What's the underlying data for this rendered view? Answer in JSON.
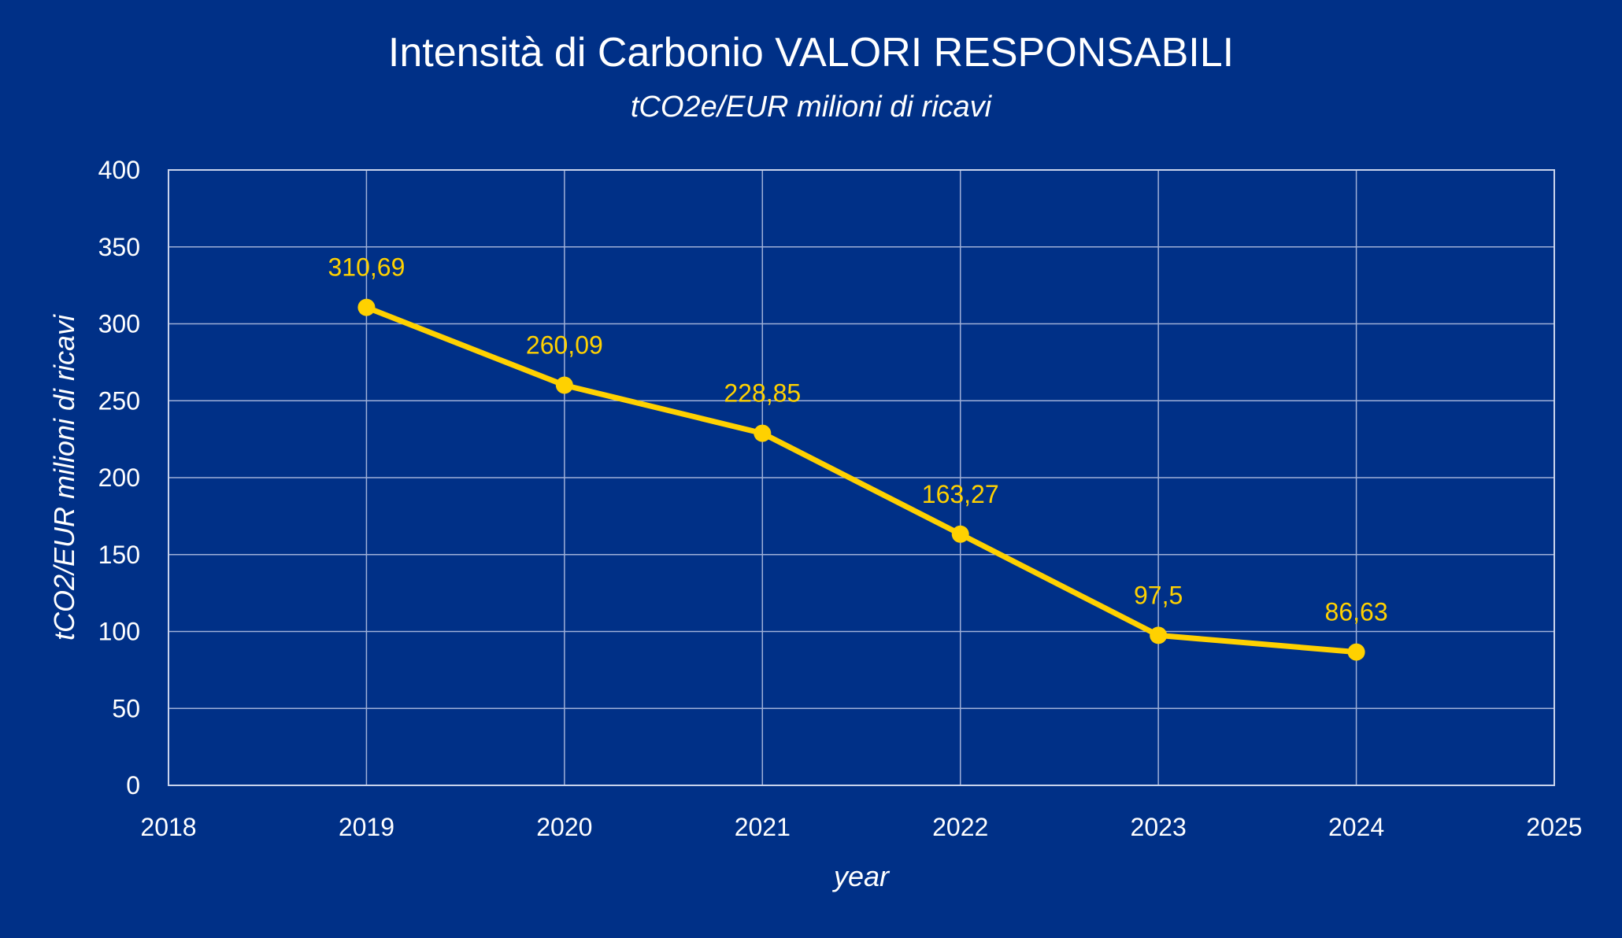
{
  "colors": {
    "background": "#003087",
    "line": "#FFD100",
    "text": "#ffffff",
    "grid": "#9fb0d8"
  },
  "chart_data": {
    "type": "scatter",
    "title": "Intensità di Carbonio VALORI RESPONSABILI",
    "subtitle": "tCO2e/EUR milioni di ricavi",
    "xlabel": "year",
    "ylabel": "tCO2/EUR milioni di ricavi",
    "xlim": [
      2018,
      2025
    ],
    "ylim": [
      0,
      400
    ],
    "x_ticks": [
      2018,
      2019,
      2020,
      2021,
      2022,
      2023,
      2024,
      2025
    ],
    "y_ticks": [
      0,
      50,
      100,
      150,
      200,
      250,
      300,
      350,
      400
    ],
    "grid": true,
    "legend": "none",
    "series": [
      {
        "x": [
          2019,
          2020,
          2021,
          2022,
          2023,
          2024
        ],
        "y": [
          310.69,
          260.09,
          228.85,
          163.27,
          97.5,
          86.63
        ],
        "labels": [
          "310,69",
          "260,09",
          "228,85",
          "163,27",
          "97,5",
          "86,63"
        ],
        "lines_connected": true,
        "markers": true
      }
    ]
  }
}
